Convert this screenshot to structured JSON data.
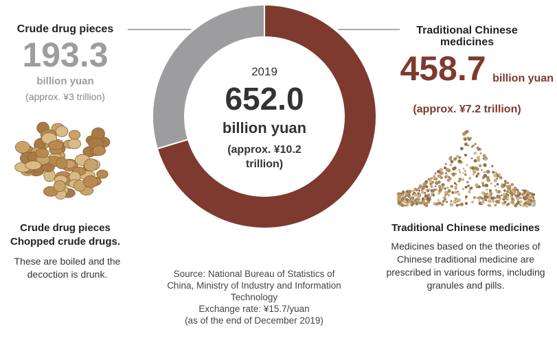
{
  "chart_data": {
    "type": "donut",
    "categories": [
      "Crude drug pieces",
      "Traditional Chinese medicines"
    ],
    "values": [
      193.3,
      458.7
    ],
    "colors": [
      "#9d9d9f",
      "#7e3a2f"
    ],
    "unit": "billion yuan",
    "approx": [
      "(approx. ¥3 trillion)",
      "(approx. ¥7.2 trillion)"
    ],
    "center": {
      "year": "2019",
      "total": "652.0",
      "unit": "billion yuan",
      "approx": "(approx. ¥10.2 trillion)"
    },
    "captions": [
      {
        "subtitle": "Chopped crude drugs.",
        "text": "These are boiled and the decoction is drunk."
      },
      {
        "text": "Medicines based on the theories of Chinese traditional medicine are prescribed in various forms, including granules and pills."
      }
    ],
    "source": [
      "Source: National Bureau of Statistics of China, Ministry of Industry and Information Technology",
      "Exchange rate: ¥15.7/yuan",
      "(as of the end of December 2019)"
    ]
  }
}
